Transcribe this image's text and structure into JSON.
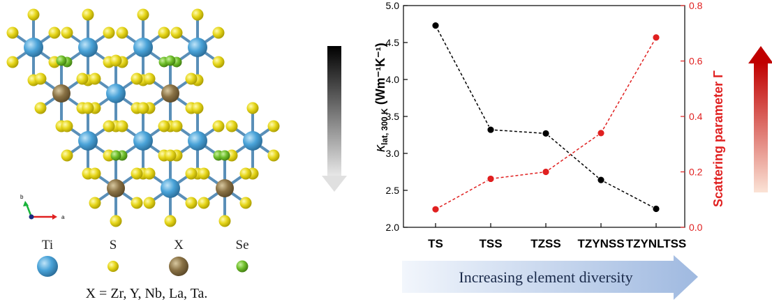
{
  "structure": {
    "axis_labels": {
      "b": "b",
      "a": "a"
    },
    "colors": {
      "Ti": "#4aa3d8",
      "S": "#e6d61a",
      "X": "#8a7245",
      "Se": "#6fbf2a",
      "bond": "#5a8fb8"
    }
  },
  "legend": {
    "items": [
      {
        "label": "Ti",
        "color": "#4aa3d8"
      },
      {
        "label": "S",
        "color": "#e6d61a"
      },
      {
        "label": "X",
        "color": "#8a7245"
      },
      {
        "label": "Se",
        "color": "#6fbf2a"
      }
    ],
    "formula": "X = Zr, Y, Nb, La, Ta."
  },
  "chart_data": {
    "type": "line",
    "categories": [
      "TS",
      "TSS",
      "TZSS",
      "TZYNSS",
      "TZYNLTSS"
    ],
    "series": [
      {
        "axis": "left",
        "color": "#000000",
        "values": [
          4.73,
          3.32,
          3.27,
          2.64,
          2.25
        ]
      },
      {
        "axis": "right",
        "color": "#e02020",
        "values": [
          0.065,
          0.175,
          0.2,
          0.34,
          0.685
        ]
      }
    ],
    "left_axis": {
      "label": "κlat, 300 K (Wm⁻¹K⁻¹)",
      "label_main": "κ",
      "label_sub": "lat, 300 K",
      "label_unit": " (Wm⁻¹K⁻¹)",
      "ylim": [
        2.0,
        5.0
      ],
      "ticks": [
        "2.0",
        "2.5",
        "3.0",
        "3.5",
        "4.0",
        "4.5",
        "5.0"
      ]
    },
    "right_axis": {
      "label": "Scattering parameter Γ",
      "ylim": [
        0.0,
        0.8
      ],
      "ticks": [
        "0.0",
        "0.2",
        "0.4",
        "0.6",
        "0.8"
      ],
      "color": "#e02020"
    },
    "line_style": "dashed",
    "grid": false
  },
  "banner": {
    "text": "Increasing element diversity"
  },
  "arrows": {
    "down_gradient": [
      "#000000",
      "#e8e8e8"
    ],
    "up_gradient": [
      "#c00000",
      "#fbe3d6"
    ]
  }
}
